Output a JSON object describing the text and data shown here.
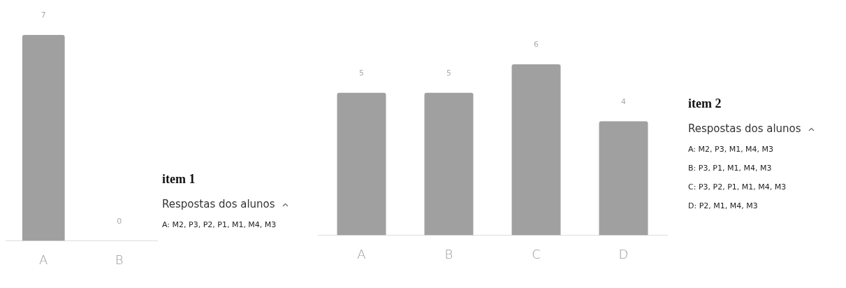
{
  "chart_data": [
    {
      "type": "bar",
      "categories": [
        "A",
        "B"
      ],
      "values": [
        7,
        0
      ],
      "color": "#a0a0a0",
      "data_labels": true,
      "grid": false,
      "tick_labels": "x"
    },
    {
      "type": "other",
      "title": "item 1",
      "annotations": [
        "Respostas dos alunos",
        "A: M2, P3, P2, P1, M1, M4, M3"
      ]
    },
    {
      "type": "bar",
      "categories": [
        "A",
        "B",
        "C",
        "D"
      ],
      "values": [
        5,
        5,
        6,
        4
      ],
      "color": "#a0a0a0",
      "data_labels": true,
      "grid": false,
      "tick_labels": "x"
    },
    {
      "type": "other",
      "title": "item 2",
      "annotations": [
        "Respostas dos alunos",
        "A: M2, P3, M1, M4, M3",
        "B: P3, P1, M1, M4, M3",
        "C: P3, P2, P1, M1, M4, M3",
        "D: P2, M1, M4, M3"
      ]
    }
  ]
}
